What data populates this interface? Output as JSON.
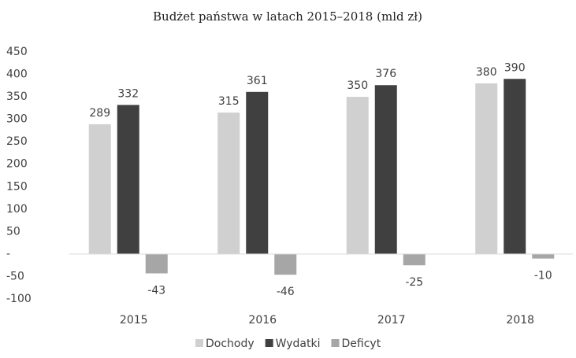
{
  "chart_data": {
    "type": "bar",
    "title": "Budżet państwa w latach 2015–2018 (mld zł)",
    "categories": [
      "2015",
      "2016",
      "2017",
      "2018"
    ],
    "series": [
      {
        "name": "Dochody",
        "color": "#d0d0d0",
        "values": [
          289,
          315,
          350,
          380
        ]
      },
      {
        "name": "Wydatki",
        "color": "#404040",
        "values": [
          332,
          361,
          376,
          390
        ]
      },
      {
        "name": "Deficyt",
        "color": "#a6a6a6",
        "values": [
          -43,
          -46,
          -25,
          -10
        ]
      }
    ],
    "ylim": [
      -100,
      450
    ],
    "yticks": [
      -100,
      -50,
      {
        "value": 0,
        "label": "-"
      },
      50,
      100,
      150,
      200,
      250,
      300,
      350,
      400,
      450
    ],
    "grid": false,
    "legend": "bottom"
  }
}
